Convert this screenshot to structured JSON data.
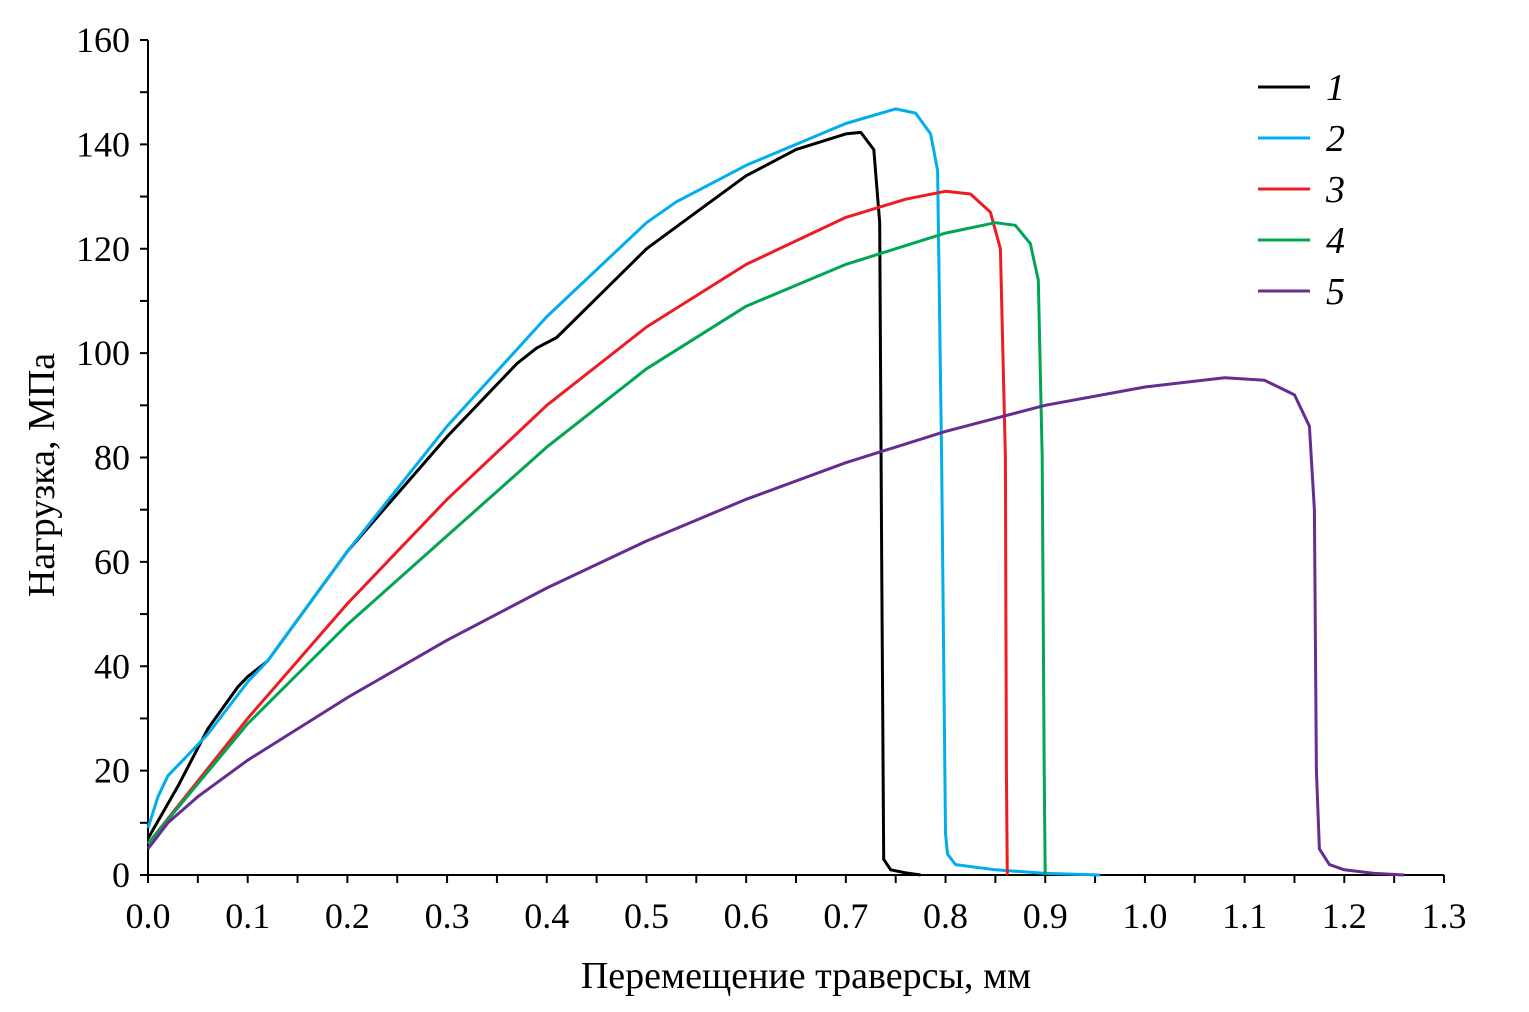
{
  "chart_data": {
    "type": "line",
    "title": "",
    "xlabel": "Перемещение траверсы, мм",
    "ylabel": "Нагрузка, МПа",
    "xlim": [
      0,
      1.3
    ],
    "ylim": [
      0,
      160
    ],
    "xticks": [
      "0.0",
      "0.1",
      "0.2",
      "0.3",
      "0.4",
      "0.5",
      "0.6",
      "0.7",
      "0.8",
      "0.9",
      "1.0",
      "1.1",
      "1.2",
      "1.3"
    ],
    "yticks": [
      "0",
      "20",
      "40",
      "60",
      "80",
      "100",
      "120",
      "140",
      "160"
    ],
    "grid": false,
    "legend_position": "top-right",
    "series": [
      {
        "name": "1",
        "color": "#000000",
        "x": [
          0,
          0.03,
          0.06,
          0.09,
          0.1,
          0.12,
          0.2,
          0.3,
          0.37,
          0.39,
          0.41,
          0.5,
          0.55,
          0.6,
          0.65,
          0.7,
          0.715,
          0.728,
          0.734,
          0.736,
          0.738,
          0.745,
          0.76,
          0.775
        ],
        "y": [
          7,
          17,
          28,
          36,
          38,
          41,
          62,
          84,
          98,
          101,
          103,
          120,
          127,
          134,
          139,
          142,
          142.3,
          139,
          125,
          60,
          3,
          1,
          0.4,
          0
        ]
      },
      {
        "name": "2",
        "color": "#00aeef",
        "x": [
          0,
          0.01,
          0.02,
          0.04,
          0.06,
          0.08,
          0.1,
          0.12,
          0.2,
          0.3,
          0.4,
          0.5,
          0.53,
          0.6,
          0.7,
          0.75,
          0.77,
          0.785,
          0.792,
          0.796,
          0.8,
          0.802,
          0.81,
          0.85,
          0.9,
          0.955
        ],
        "y": [
          9,
          15,
          19,
          23,
          27,
          32,
          37,
          41,
          62,
          86,
          107,
          125,
          129,
          136,
          144,
          146.8,
          146,
          142,
          135,
          80,
          8,
          4,
          2,
          1,
          0.3,
          0
        ]
      },
      {
        "name": "3",
        "color": "#ed1c24",
        "x": [
          0,
          0.1,
          0.2,
          0.3,
          0.4,
          0.5,
          0.6,
          0.7,
          0.76,
          0.8,
          0.825,
          0.845,
          0.855,
          0.86,
          0.861,
          0.862
        ],
        "y": [
          6,
          30,
          52,
          72,
          90,
          105,
          117,
          126,
          129.5,
          131,
          130.5,
          127,
          120,
          80,
          20,
          0
        ]
      },
      {
        "name": "4",
        "color": "#00a651",
        "x": [
          0,
          0.1,
          0.2,
          0.3,
          0.4,
          0.5,
          0.6,
          0.7,
          0.8,
          0.85,
          0.87,
          0.885,
          0.893,
          0.897,
          0.899,
          0.9
        ],
        "y": [
          6,
          29,
          48,
          65,
          82,
          97,
          109,
          117,
          123,
          125,
          124.5,
          121,
          114,
          80,
          20,
          0
        ]
      },
      {
        "name": "5",
        "color": "#662d91",
        "x": [
          0,
          0.02,
          0.05,
          0.1,
          0.2,
          0.3,
          0.4,
          0.5,
          0.6,
          0.7,
          0.8,
          0.9,
          1.0,
          1.08,
          1.12,
          1.15,
          1.165,
          1.17,
          1.172,
          1.175,
          1.185,
          1.2,
          1.23,
          1.26
        ],
        "y": [
          5,
          10,
          15,
          22,
          34,
          45,
          55,
          64,
          72,
          79,
          85,
          90,
          93.5,
          95.3,
          94.8,
          92,
          86,
          70,
          20,
          5,
          2,
          1,
          0.3,
          0
        ]
      }
    ]
  }
}
